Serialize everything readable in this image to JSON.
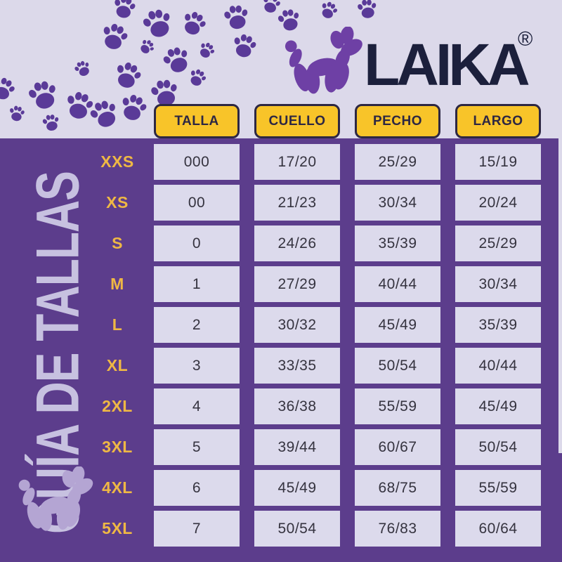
{
  "brand": {
    "name": "LAIKA",
    "registered_mark": "®"
  },
  "title": "GUÍA DE TALLAS",
  "chart_data": {
    "type": "table",
    "title": "GUÍA DE TALLAS",
    "columns": [
      "TALLA",
      "CUELLO",
      "PECHO",
      "LARGO"
    ],
    "row_labels": [
      "XXS",
      "XS",
      "S",
      "M",
      "L",
      "XL",
      "2XL",
      "3XL",
      "4XL",
      "5XL"
    ],
    "rows": [
      [
        "000",
        "17/20",
        "25/29",
        "15/19"
      ],
      [
        "00",
        "21/23",
        "30/34",
        "20/24"
      ],
      [
        "0",
        "24/26",
        "35/39",
        "25/29"
      ],
      [
        "1",
        "27/29",
        "40/44",
        "30/34"
      ],
      [
        "2",
        "30/32",
        "45/49",
        "35/39"
      ],
      [
        "3",
        "33/35",
        "50/54",
        "40/44"
      ],
      [
        "4",
        "36/38",
        "55/59",
        "45/49"
      ],
      [
        "5",
        "39/44",
        "60/67",
        "50/54"
      ],
      [
        "6",
        "45/49",
        "68/75",
        "55/59"
      ],
      [
        "7",
        "50/54",
        "76/83",
        "60/64"
      ]
    ]
  },
  "icons": {
    "paw": "paw-print",
    "logo": "balloon-dog",
    "footer": "balloon-dog"
  },
  "colors": {
    "background_light": "#dcd9ea",
    "background_purple": "#5c3d8c",
    "paw_purple": "#5a3a98",
    "logo_purple": "#6e40a5",
    "brand_navy": "#1c203c",
    "header_yellow": "#f8c429",
    "label_yellow": "#efb844",
    "cell_lavender": "#dcdaec",
    "cell_text": "#35333f",
    "side_title_lavender": "#c7c1e0",
    "footer_dog_lavender": "#b4a5d3"
  }
}
